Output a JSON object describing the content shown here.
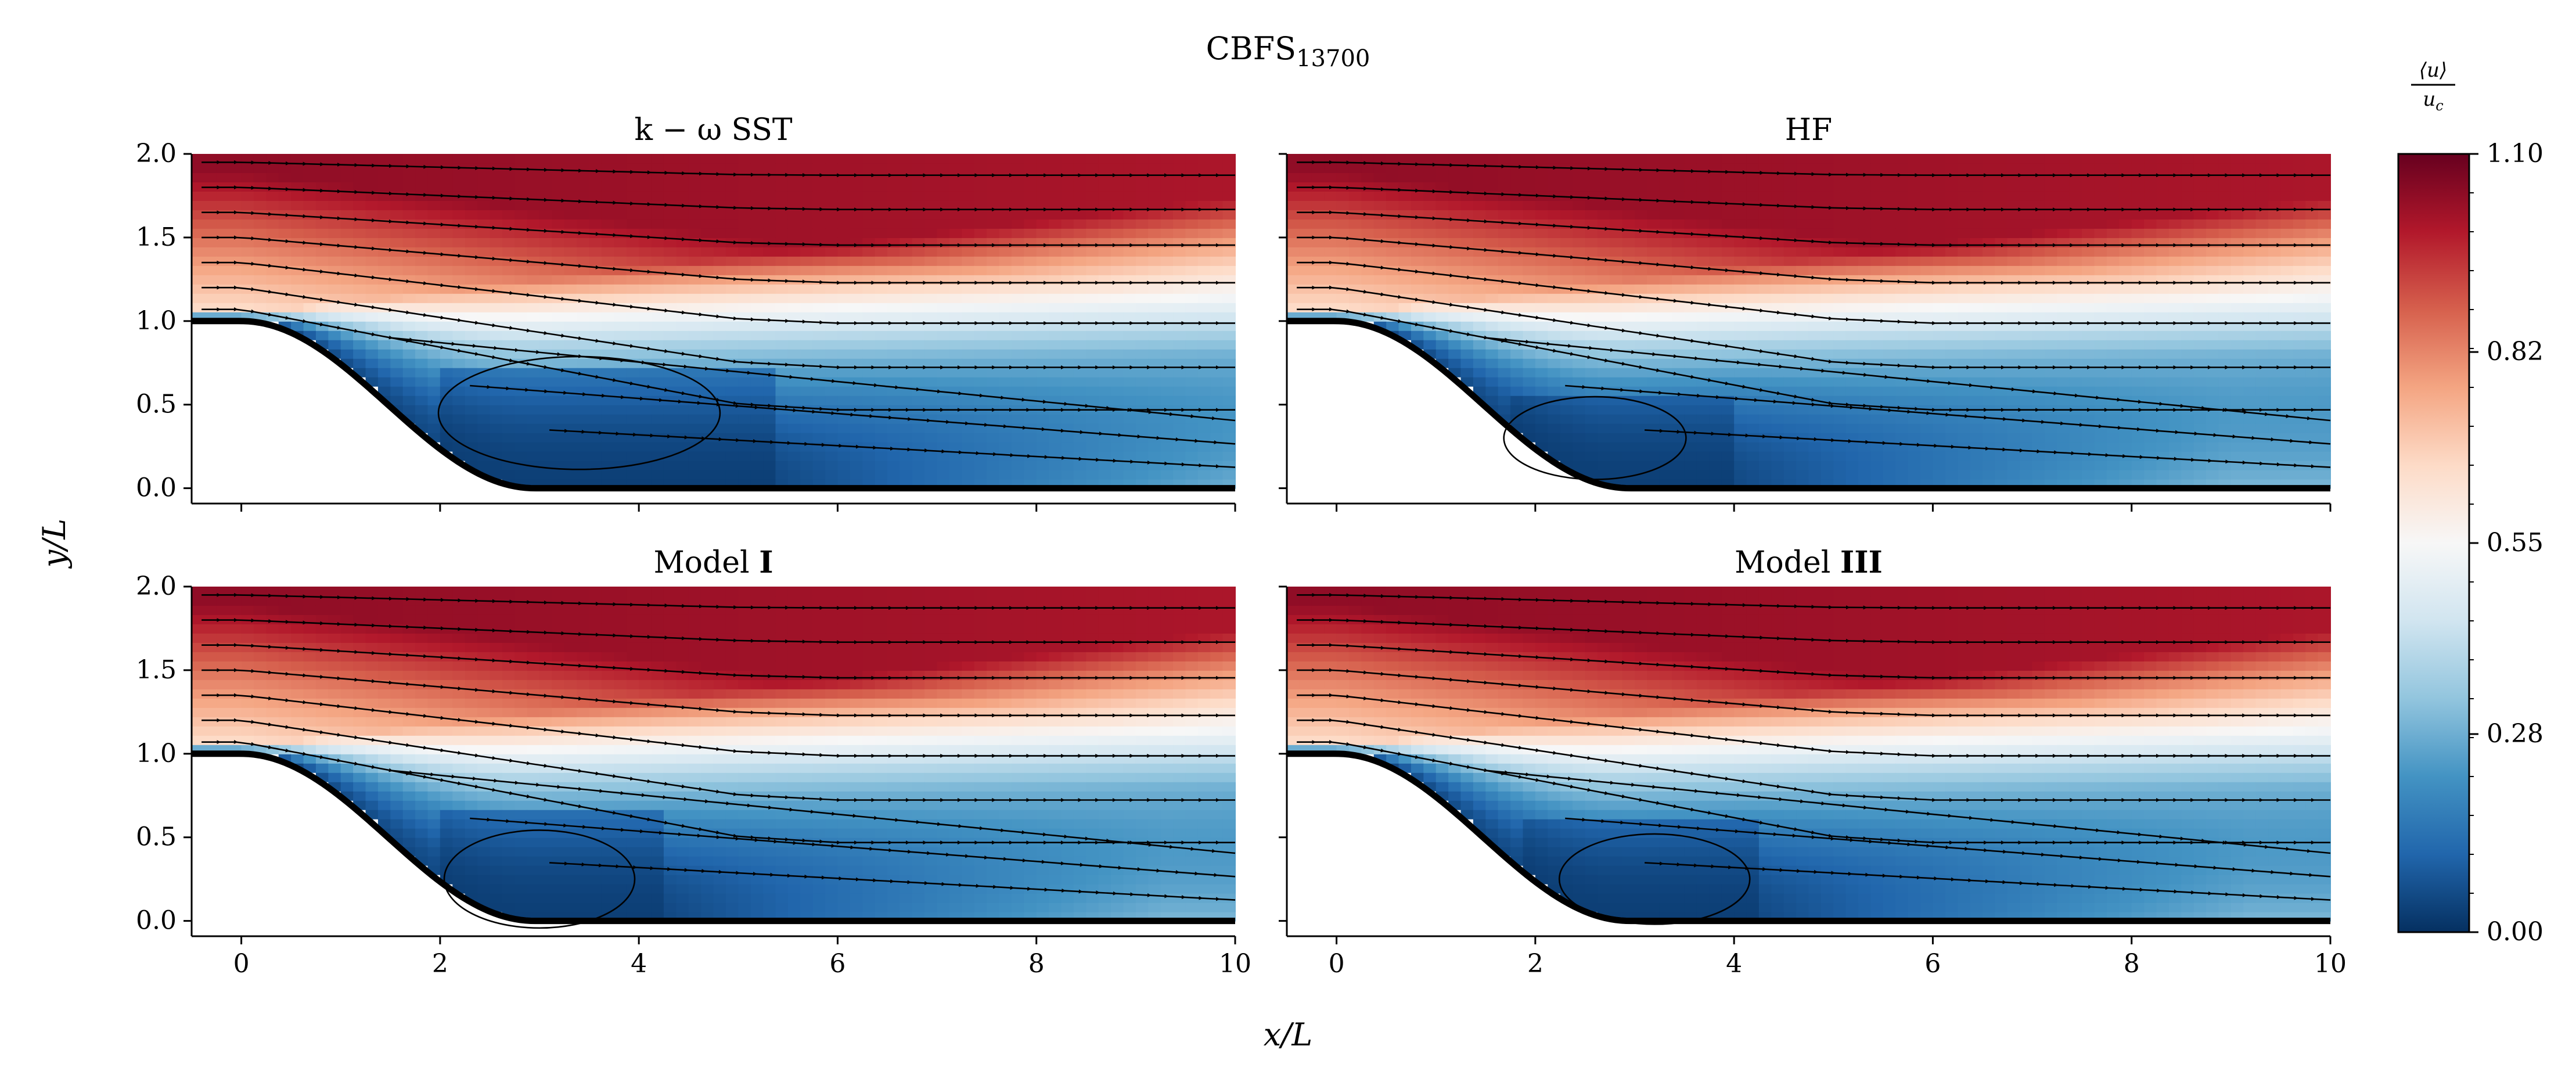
{
  "figure": {
    "title_main": "CBFS",
    "title_sub": "13700",
    "xlabel": "x/L",
    "ylabel": "y/L"
  },
  "chart_data": {
    "type": "heatmap",
    "field": "mean streamwise velocity contours with streamlines",
    "panels": [
      {
        "title_prefix": "k − ω SST",
        "title_bold": "",
        "bubble_start_x": 2.0,
        "bubble_end_x": 5.4,
        "bubble_height_y": 0.75,
        "vortex_center": [
          3.4,
          0.35
        ]
      },
      {
        "title_prefix": "HF",
        "title_bold": "",
        "bubble_start_x": 1.8,
        "bubble_end_x": 4.0,
        "bubble_height_y": 0.55,
        "vortex_center": [
          2.6,
          0.2
        ]
      },
      {
        "title_prefix": "Model ",
        "title_bold": "I",
        "bubble_start_x": 2.0,
        "bubble_end_x": 4.3,
        "bubble_height_y": 0.65,
        "vortex_center": [
          3.0,
          0.15
        ]
      },
      {
        "title_prefix": "Model ",
        "title_bold": "III",
        "bubble_start_x": 1.9,
        "bubble_end_x": 4.2,
        "bubble_height_y": 0.6,
        "vortex_center": [
          3.2,
          0.15
        ]
      }
    ],
    "x_range": [
      -0.5,
      10
    ],
    "y_range": [
      0,
      2.0
    ],
    "x_ticks": [
      "0",
      "2",
      "4",
      "6",
      "8",
      "10"
    ],
    "y_ticks": [
      "0.0",
      "0.5",
      "1.0",
      "1.5",
      "2.0"
    ],
    "colorbar": {
      "label_num": "⟨u⟩",
      "label_den": "u",
      "label_den_sub": "c",
      "min": 0.0,
      "max": 1.1,
      "ticks": [
        "0.00",
        "0.28",
        "0.55",
        "0.82",
        "1.10"
      ],
      "colormap": "RdBu_r",
      "levels": 25
    },
    "colors": {
      "wall": "#000000",
      "stops": [
        "#053061",
        "#2166ac",
        "#4393c3",
        "#92c5de",
        "#d1e5f0",
        "#f7f7f7",
        "#fddbc7",
        "#f4a582",
        "#d6604d",
        "#b2182b",
        "#67001f"
      ]
    }
  }
}
